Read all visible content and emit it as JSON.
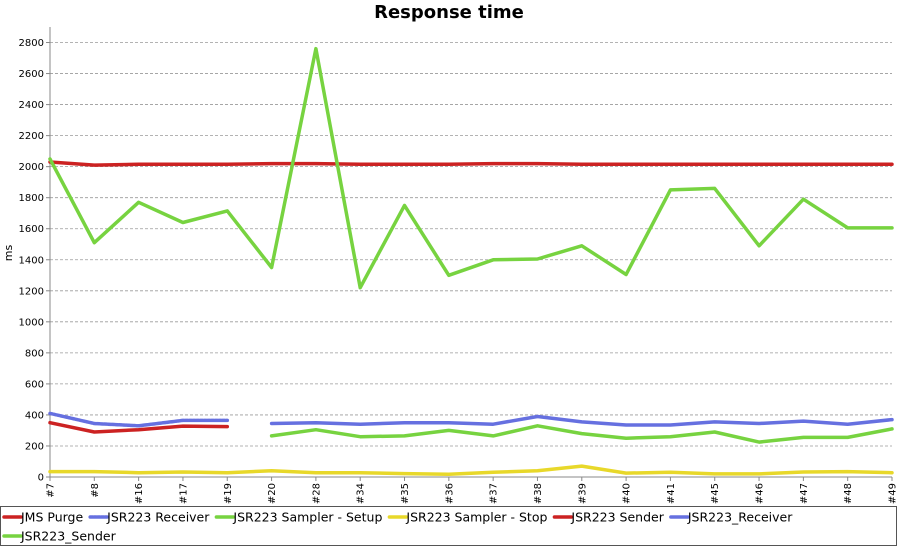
{
  "chart_data": {
    "type": "line",
    "title": "Response time",
    "xlabel": "",
    "ylabel": "ms",
    "ylim": [
      0,
      2900
    ],
    "yticks": [
      0,
      200,
      400,
      600,
      800,
      1000,
      1200,
      1400,
      1600,
      1800,
      2000,
      2200,
      2400,
      2600,
      2800
    ],
    "grid": true,
    "legend_position": "bottom",
    "categories": [
      "#7",
      "#8",
      "#16",
      "#17",
      "#19",
      "#20",
      "#28",
      "#34",
      "#35",
      "#36",
      "#37",
      "#38",
      "#39",
      "#40",
      "#41",
      "#45",
      "#46",
      "#47",
      "#48",
      "#49"
    ],
    "series": [
      {
        "name": "JMS Purge",
        "color": "#cc2222",
        "style": "solid",
        "values": [
          350,
          290,
          305,
          328,
          325,
          null,
          null,
          null,
          null,
          null,
          null,
          null,
          null,
          null,
          null,
          null,
          null,
          null,
          null,
          null
        ]
      },
      {
        "name": "JSR223 Receiver",
        "color": "#6670e0",
        "style": "dotted",
        "values": [
          410,
          345,
          330,
          365,
          365,
          null,
          null,
          null,
          null,
          null,
          null,
          null,
          null,
          null,
          null,
          null,
          null,
          null,
          null,
          null
        ]
      },
      {
        "name": "JSR223 Sampler - Setup",
        "color": "#77d340",
        "style": "solid",
        "values": [
          null,
          null,
          null,
          null,
          null,
          265,
          305,
          260,
          265,
          300,
          265,
          330,
          280,
          250,
          260,
          290,
          225,
          255,
          255,
          310
        ]
      },
      {
        "name": "JSR223 Sampler - Stop",
        "color": "#e8d82a",
        "style": "solid",
        "values": [
          35,
          35,
          28,
          32,
          28,
          40,
          28,
          28,
          22,
          18,
          30,
          40,
          70,
          25,
          30,
          20,
          20,
          32,
          35,
          28
        ]
      },
      {
        "name": "JSR223 Sender",
        "color": "#cc2222",
        "style": "solid",
        "values": [
          2030,
          2010,
          2015,
          2015,
          2015,
          2020,
          2020,
          2015,
          2015,
          2015,
          2020,
          2020,
          2015,
          2015,
          2015,
          2015,
          2015,
          2015,
          2015,
          2015
        ]
      },
      {
        "name": "JSR223_Receiver",
        "color": "#6670e0",
        "style": "solid",
        "values": [
          null,
          null,
          null,
          null,
          null,
          345,
          350,
          340,
          350,
          350,
          340,
          390,
          355,
          335,
          335,
          355,
          345,
          360,
          340,
          370
        ]
      },
      {
        "name": "JSR223_Sender",
        "color": "#77d340",
        "style": "solid",
        "values": [
          2050,
          1510,
          1770,
          1640,
          1715,
          1350,
          2760,
          1220,
          1750,
          1300,
          1400,
          1405,
          1490,
          1305,
          1850,
          1860,
          1490,
          1790,
          1605,
          1605
        ]
      }
    ]
  }
}
